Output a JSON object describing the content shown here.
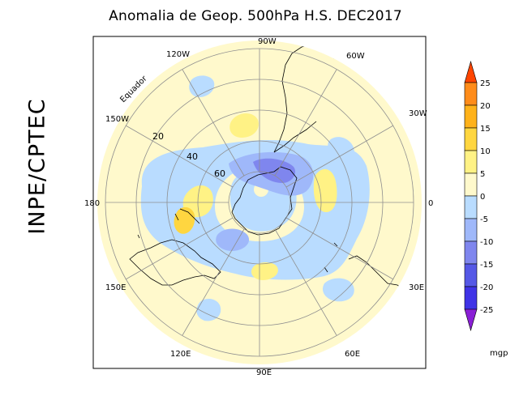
{
  "title": "Anomalia de Geop. 500hPa H.S. DEC2017",
  "side_label": "INPE/CPTEC",
  "equator_label": "Equador",
  "longitude_labels": [
    "90W",
    "60W",
    "30W",
    "0",
    "30E",
    "60E",
    "90E",
    "120E",
    "150E",
    "180",
    "150W",
    "120W"
  ],
  "latitude_labels": [
    "20",
    "40",
    "60"
  ],
  "legend": {
    "units": "mgp",
    "ticks": [
      "25",
      "20",
      "15",
      "10",
      "5",
      "0",
      "-5",
      "-10",
      "-15",
      "-20",
      "-25"
    ],
    "colors": [
      "#ff4500",
      "#ff8c1a",
      "#ffb21a",
      "#ffd640",
      "#fff285",
      "#fff9cc",
      "#b9dcff",
      "#9fb8fa",
      "#7f86ee",
      "#5558e6",
      "#3f33e6",
      "#8a1fd6"
    ]
  },
  "colors": {
    "background_positive": "#fff9cc",
    "negative_light": "#b9dcff",
    "negative_medium": "#9fb8fa",
    "negative_strong": "#7f86ee",
    "positive_light": "#fff285",
    "positive_medium": "#ffd640"
  }
}
